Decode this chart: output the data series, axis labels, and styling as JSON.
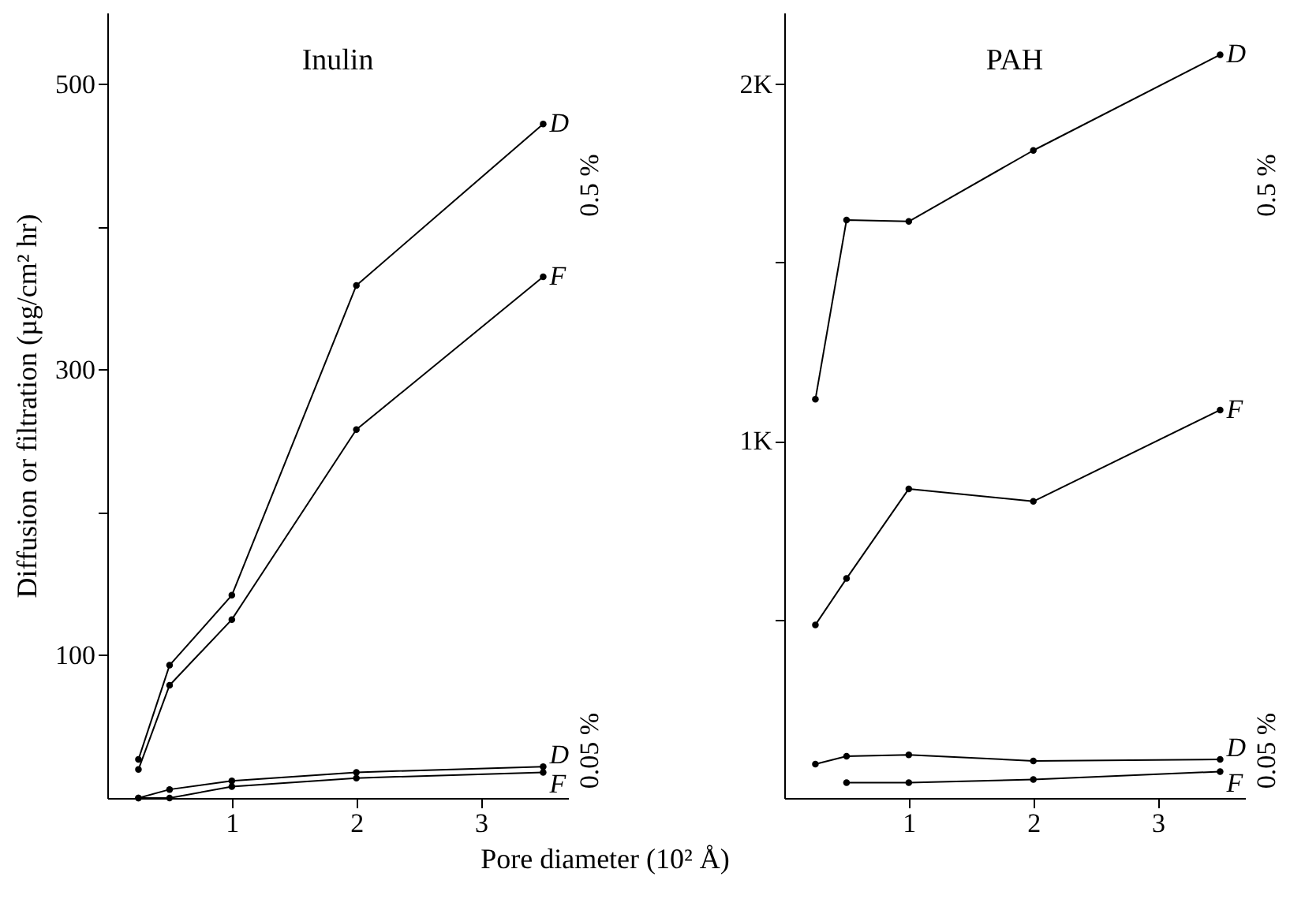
{
  "chart_data": [
    {
      "type": "line",
      "title": "Inulin",
      "xlabel": "Pore diameter (10² Å)",
      "ylabel": "Diffusion or filtration (µg/cm² hr)",
      "x": [
        0.25,
        0.5,
        1,
        2,
        3.5
      ],
      "xlim": [
        0,
        3.7
      ],
      "xticks": [
        1,
        2,
        3
      ],
      "ylim": [
        0,
        550
      ],
      "yticks": [
        100,
        {
          "value": 200,
          "label": null
        },
        300,
        {
          "value": 400,
          "label": null
        },
        500
      ],
      "grid": false,
      "marker": "circle",
      "series": [
        {
          "name": "D",
          "color": "#000000",
          "values": [
            27,
            93,
            142,
            359,
            472
          ]
        },
        {
          "name": "F",
          "color": "#000000",
          "values": [
            20,
            79,
            125,
            258,
            365
          ]
        },
        {
          "name": "D",
          "color": "#000000",
          "values": [
            0,
            6,
            12,
            18,
            22
          ]
        },
        {
          "name": "F",
          "color": "#000000",
          "values": [
            0,
            0,
            8,
            14,
            18
          ]
        }
      ],
      "annotations": [
        "0.5 %",
        "0.05 %"
      ]
    },
    {
      "type": "line",
      "title": "PAH",
      "x": [
        0.25,
        0.5,
        1,
        2,
        3.5
      ],
      "xlim": [
        0,
        3.7
      ],
      "xticks": [
        1,
        2,
        3
      ],
      "ylim": [
        0,
        2200
      ],
      "yticks": [
        {
          "value": 500,
          "label": null
        },
        {
          "value": 1000,
          "label": "1K"
        },
        {
          "value": 1500,
          "label": null
        },
        {
          "value": 2000,
          "label": "2K"
        }
      ],
      "grid": false,
      "marker": "circle",
      "series": [
        {
          "name": "D",
          "color": "#000000",
          "values": [
            1117,
            1619,
            1615,
            1814,
            2082
          ]
        },
        {
          "name": "F",
          "color": "#000000",
          "values": [
            485,
            615,
            866,
            831,
            1087
          ]
        },
        {
          "name": "D",
          "color": "#000000",
          "values": [
            95,
            117,
            121,
            104,
            108
          ]
        },
        {
          "name": "F",
          "color": "#000000",
          "values": [
            null,
            43,
            43,
            52,
            74
          ]
        }
      ],
      "annotations": [
        "0.5 %",
        "0.05 %"
      ]
    }
  ]
}
